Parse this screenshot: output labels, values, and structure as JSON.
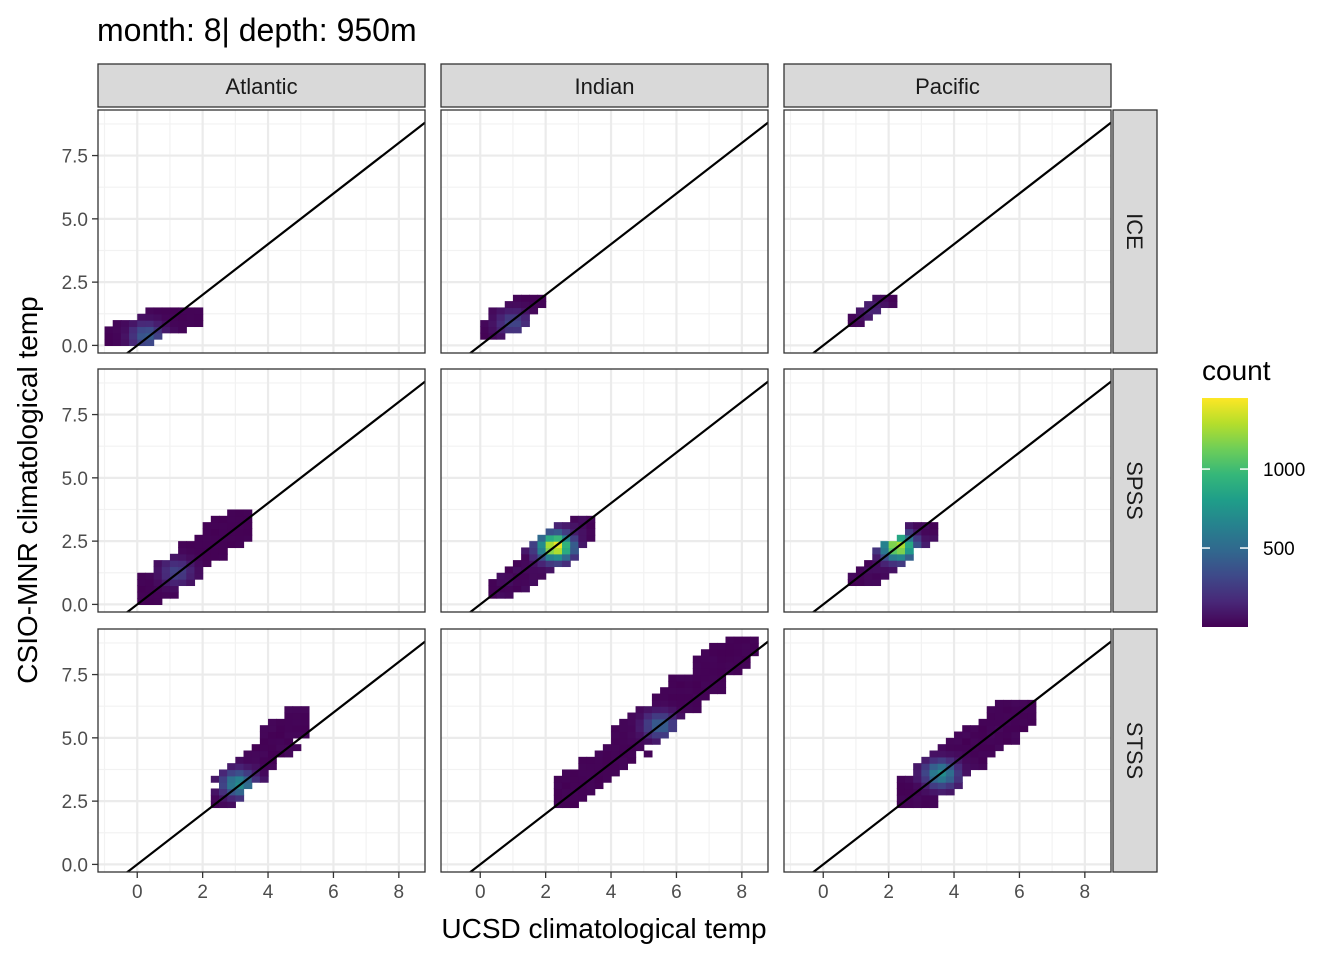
{
  "chart_data": {
    "type": "heatmap",
    "title": "month: 8| depth: 950m",
    "xlabel": "UCSD climatological temp",
    "ylabel": "CSIO-MNR climatological temp",
    "xlim": [
      -1.2,
      8.8
    ],
    "ylim": [
      -0.3,
      9.3
    ],
    "x_ticks": [
      0,
      2,
      4,
      6,
      8
    ],
    "y_ticks": [
      0.0,
      2.5,
      5.0,
      7.5
    ],
    "y_tick_labels": [
      "0.0",
      "2.5",
      "5.0",
      "7.5"
    ],
    "columns": [
      "Atlantic",
      "Indian",
      "Pacific"
    ],
    "rows": [
      "ICE",
      "SPSS",
      "STSS"
    ],
    "reference_line": {
      "slope": 1,
      "intercept": 0
    },
    "grid": true,
    "legend": {
      "title": "count",
      "position": "right",
      "colormap": "viridis",
      "range": [
        0,
        1450
      ],
      "ticks": [
        500,
        1000
      ],
      "tick_labels": [
        "500",
        "1000"
      ]
    },
    "panels": [
      {
        "column": "Atlantic",
        "row": "ICE",
        "x_range": [
          -0.8,
          1.8
        ],
        "y_range": [
          0.0,
          1.5
        ],
        "peak": [
          0.3,
          0.4
        ],
        "peak_count": 420
      },
      {
        "column": "Indian",
        "row": "ICE",
        "x_range": [
          0.0,
          2.0
        ],
        "y_range": [
          0.4,
          2.0
        ],
        "peak": [
          1.0,
          0.9
        ],
        "peak_count": 300
      },
      {
        "column": "Pacific",
        "row": "ICE",
        "x_range": [
          0.9,
          2.1
        ],
        "y_range": [
          0.8,
          2.0
        ],
        "peak": [
          1.5,
          1.4
        ],
        "peak_count": 150
      },
      {
        "column": "Atlantic",
        "row": "SPSS",
        "x_range": [
          0.0,
          3.5
        ],
        "y_range": [
          0.0,
          3.7
        ],
        "peak": [
          1.2,
          1.3
        ],
        "peak_count": 280
      },
      {
        "column": "Indian",
        "row": "SPSS",
        "x_range": [
          0.3,
          3.5
        ],
        "y_range": [
          0.3,
          3.4
        ],
        "peak": [
          2.3,
          2.3
        ],
        "peak_count": 1450
      },
      {
        "column": "Pacific",
        "row": "SPSS",
        "x_range": [
          0.9,
          3.3
        ],
        "y_range": [
          0.8,
          3.2
        ],
        "peak": [
          2.3,
          2.3
        ],
        "peak_count": 1300
      },
      {
        "column": "Atlantic",
        "row": "STSS",
        "x_range": [
          2.4,
          5.2
        ],
        "y_range": [
          2.4,
          6.1
        ],
        "peak": [
          3.1,
          3.2
        ],
        "peak_count": 700
      },
      {
        "column": "Indian",
        "row": "STSS",
        "x_range": [
          2.4,
          8.3
        ],
        "y_range": [
          2.4,
          9.0
        ],
        "peak": [
          5.5,
          5.5
        ],
        "peak_count": 450
      },
      {
        "column": "Pacific",
        "row": "STSS",
        "x_range": [
          2.4,
          6.5
        ],
        "y_range": [
          2.4,
          6.5
        ],
        "peak": [
          3.6,
          3.6
        ],
        "peak_count": 700
      }
    ]
  }
}
